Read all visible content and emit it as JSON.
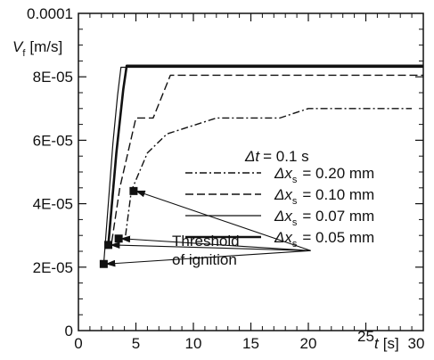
{
  "chart_data": {
    "type": "line",
    "ylabel_main": "V",
    "ylabel_sub": "f",
    "ylabel_unit": "[m/s]",
    "xlabel_main": "t",
    "xlabel_unit": "[s]",
    "xlim": [
      0,
      30
    ],
    "ylim": [
      0,
      0.0001
    ],
    "xticks": [
      0,
      5,
      10,
      15,
      20,
      25,
      30
    ],
    "xtick_labels": [
      "0",
      "5",
      "10",
      "15",
      "20",
      "25",
      "30"
    ],
    "yticks": [
      0,
      2e-05,
      4e-05,
      6e-05,
      8e-05,
      0.0001
    ],
    "ytick_labels": [
      "0",
      "2E-05",
      "4E-05",
      "6E-05",
      "8E-05",
      "0.0001"
    ],
    "grid": false,
    "legend_title_prefix": "Δt",
    "legend_title_value": "= 0.1 s",
    "series": [
      {
        "name": "Δx_s = 0.20 mm",
        "label_delta": "Δx",
        "label_sub": "s",
        "label_value": "= 0.20 mm",
        "linestyle": "dashdot",
        "x": [
          4.1,
          4.6,
          6.0,
          7.7,
          12.0,
          17.5,
          20.0,
          29.0
        ],
        "y": [
          3e-05,
          4.4e-05,
          5.6e-05,
          6.2e-05,
          6.7e-05,
          6.7e-05,
          7e-05,
          7e-05
        ]
      },
      {
        "name": "Δx_s = 0.10 mm",
        "label_delta": "Δx",
        "label_sub": "s",
        "label_value": "= 0.10 mm",
        "linestyle": "dashed",
        "x": [
          2.9,
          3.6,
          5.0,
          6.5,
          8.0,
          30.0
        ],
        "y": [
          2.8e-05,
          4.5e-05,
          6.7e-05,
          6.7e-05,
          8.05e-05,
          8.05e-05
        ]
      },
      {
        "name": "Δx_s = 0.07 mm",
        "label_delta": "Δx",
        "label_sub": "s",
        "label_value": "= 0.07 mm",
        "linestyle": "thin-solid",
        "x": [
          2.2,
          3.0,
          3.4,
          3.7,
          30.0
        ],
        "y": [
          2.1e-05,
          5.9e-05,
          7.4e-05,
          8.3e-05,
          8.3e-05
        ]
      },
      {
        "name": "Δx_s = 0.05 mm",
        "label_delta": "Δx",
        "label_sub": "s",
        "label_value": "= 0.05 mm",
        "linestyle": "thick-solid",
        "x": [
          2.6,
          3.3,
          3.9,
          4.2,
          30.0
        ],
        "y": [
          2.7e-05,
          5.6e-05,
          7.6e-05,
          8.35e-05,
          8.35e-05
        ]
      }
    ],
    "ignition_markers": [
      {
        "x": 2.2,
        "y": 2.1e-05
      },
      {
        "x": 2.6,
        "y": 2.7e-05
      },
      {
        "x": 3.5,
        "y": 2.9e-05
      },
      {
        "x": 4.8,
        "y": 4.4e-05
      }
    ],
    "annotation": {
      "line1": "Threshold",
      "line2": "of ignition",
      "x": 20.2,
      "y": 2.52e-05
    }
  }
}
